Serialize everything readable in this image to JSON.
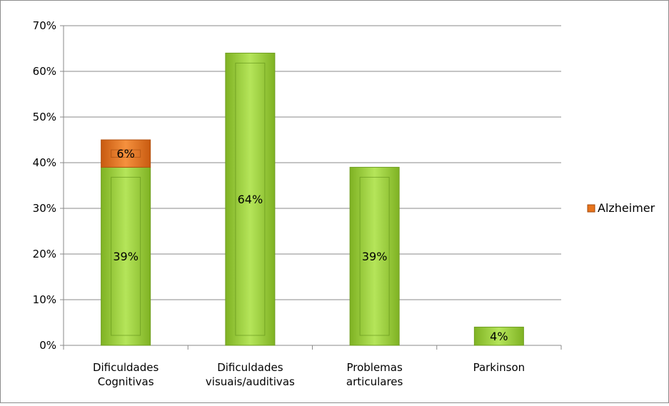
{
  "chart_data": {
    "type": "bar",
    "stacked": true,
    "categories": [
      [
        "Dificuldades",
        "Cognitivas"
      ],
      [
        "Dificuldades",
        "visuais/auditivas"
      ],
      [
        "Problemas",
        "articulares"
      ],
      [
        "Parkinson"
      ]
    ],
    "series": [
      {
        "values": [
          39,
          64,
          39,
          4
        ],
        "labels": [
          "39%",
          "64%",
          "39%",
          "4%"
        ],
        "color": "#9ACD32"
      },
      {
        "name": "Alzheimer",
        "values": [
          6,
          0,
          0,
          0
        ],
        "labels": [
          "6%",
          "",
          "",
          ""
        ],
        "color": "#E8741C"
      }
    ],
    "ylim": [
      0,
      70
    ],
    "yticks": [
      "0%",
      "10%",
      "20%",
      "30%",
      "40%",
      "50%",
      "60%",
      "70%"
    ],
    "grid": true,
    "legend": {
      "position": "right",
      "entries": [
        {
          "label": "Alzheimer",
          "color": "#E8741C"
        }
      ]
    }
  }
}
